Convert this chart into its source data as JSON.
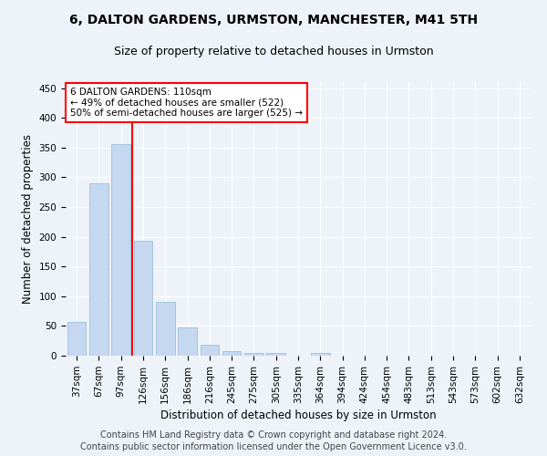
{
  "title1": "6, DALTON GARDENS, URMSTON, MANCHESTER, M41 5TH",
  "title2": "Size of property relative to detached houses in Urmston",
  "xlabel": "Distribution of detached houses by size in Urmston",
  "ylabel": "Number of detached properties",
  "categories": [
    "37sqm",
    "67sqm",
    "97sqm",
    "126sqm",
    "156sqm",
    "186sqm",
    "216sqm",
    "245sqm",
    "275sqm",
    "305sqm",
    "335sqm",
    "364sqm",
    "394sqm",
    "424sqm",
    "454sqm",
    "483sqm",
    "513sqm",
    "543sqm",
    "573sqm",
    "602sqm",
    "632sqm"
  ],
  "values": [
    57,
    290,
    355,
    193,
    90,
    47,
    18,
    8,
    5,
    5,
    0,
    5,
    0,
    0,
    0,
    0,
    0,
    0,
    0,
    0,
    0
  ],
  "bar_color": "#c5d8f0",
  "bar_edge_color": "#9bbfda",
  "red_line_x": 2.5,
  "annotation_text": "6 DALTON GARDENS: 110sqm\n← 49% of detached houses are smaller (522)\n50% of semi-detached houses are larger (525) →",
  "annotation_box_color": "white",
  "annotation_box_edge_color": "red",
  "ylim": [
    0,
    460
  ],
  "yticks": [
    0,
    50,
    100,
    150,
    200,
    250,
    300,
    350,
    400,
    450
  ],
  "footnote1": "Contains HM Land Registry data © Crown copyright and database right 2024.",
  "footnote2": "Contains public sector information licensed under the Open Government Licence v3.0.",
  "background_color": "#eef3f9",
  "grid_color": "white",
  "title1_fontsize": 10,
  "title2_fontsize": 9,
  "xlabel_fontsize": 8.5,
  "ylabel_fontsize": 8.5,
  "tick_fontsize": 7.5,
  "annotation_fontsize": 7.5,
  "footnote_fontsize": 7.0
}
